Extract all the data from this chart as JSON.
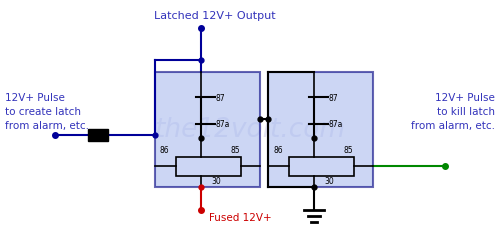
{
  "bg_color": "#ffffff",
  "relay_fill": "#aabbee",
  "relay_border": "#000080",
  "wire_blue": "#000099",
  "wire_black": "#000000",
  "wire_red": "#cc0000",
  "wire_green": "#008800",
  "text_blue": "#3333bb",
  "text_red": "#cc0000",
  "watermark_color": "#c8c8e8",
  "label_top": "Latched 12V+ Output",
  "label_left1": "12V+ Pulse",
  "label_left2": "to create latch",
  "label_left3": "from alarm, etc.",
  "label_right1": "12V+ Pulse",
  "label_right2": "to kill latch",
  "label_right3": "from alarm, etc.",
  "label_fused": "Fused 12V+"
}
